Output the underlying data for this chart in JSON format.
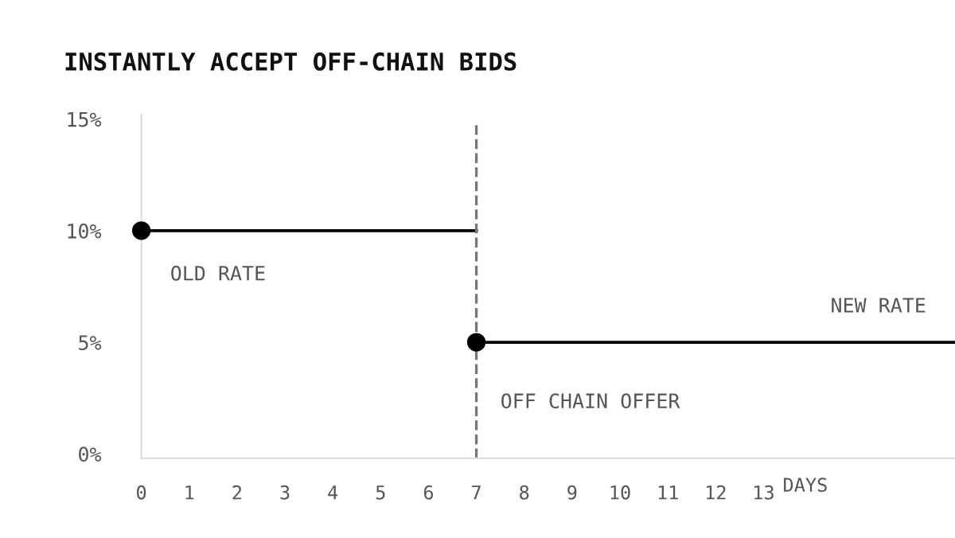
{
  "chart_data": {
    "type": "line",
    "title": "INSTANTLY ACCEPT OFF-CHAIN BIDS",
    "series": [
      {
        "name": "OLD RATE",
        "color": "#000000",
        "x": [
          0,
          7
        ],
        "values": [
          10,
          10
        ]
      },
      {
        "name": "NEW RATE",
        "color": "#000000",
        "x": [
          7,
          17
        ],
        "values": [
          5,
          5
        ]
      },
      {
        "type": "scatter",
        "color": "#000000",
        "x": [
          0,
          7
        ],
        "values": [
          10,
          5
        ],
        "marker": "circle"
      }
    ],
    "ref_lines": [
      {
        "axis": "x",
        "value": 7,
        "label": "OFF CHAIN OFFER",
        "color": "#777777",
        "line_style": "dashed"
      }
    ],
    "xlim": [
      0,
      17
    ],
    "xticks": [
      0,
      1,
      2,
      3,
      4,
      5,
      6,
      7,
      8,
      9,
      10,
      11,
      12,
      13
    ],
    "xlabel": "DAYS",
    "ylim": [
      -0.2,
      15.2
    ],
    "yticks": [
      {
        "value": 0,
        "label": "0%"
      },
      {
        "value": 5,
        "label": "5%"
      },
      {
        "value": 10,
        "label": "10%"
      },
      {
        "value": 15,
        "label": "15%"
      }
    ],
    "grid": false,
    "legend": false,
    "line_style": "solid"
  }
}
